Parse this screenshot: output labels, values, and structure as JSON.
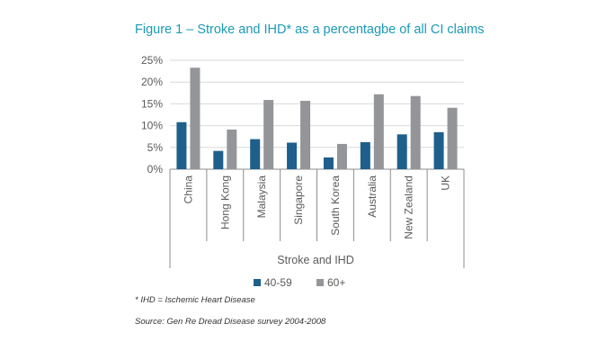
{
  "chart_data": {
    "type": "bar",
    "title": "Figure 1 – Stroke and IHD* as a percentagbe of all CI claims",
    "categories": [
      "China",
      "Hong Kong",
      "Malaysia",
      "Singapore",
      "South Korea",
      "Australia",
      "New Zealand",
      "UK"
    ],
    "series": [
      {
        "name": "40-59",
        "color": "#1f5f8b",
        "values": [
          10.8,
          4.2,
          6.9,
          6.1,
          2.7,
          6.2,
          8.0,
          8.5
        ]
      },
      {
        "name": "60+",
        "color": "#939598",
        "values": [
          23.3,
          9.1,
          15.9,
          15.7,
          5.8,
          17.2,
          16.8,
          14.1
        ]
      }
    ],
    "ylim": [
      0,
      25
    ],
    "yticks": [
      "0%",
      "5%",
      "10%",
      "15%",
      "20%",
      "25%"
    ],
    "xlabel": "Stroke and IHD",
    "ylabel": "",
    "grid": true,
    "legend": "bottom"
  },
  "notes": {
    "footnote": "* IHD = Ischemic Heart Disease",
    "source": "Source: Gen Re Dread Disease survey 2004-2008"
  }
}
